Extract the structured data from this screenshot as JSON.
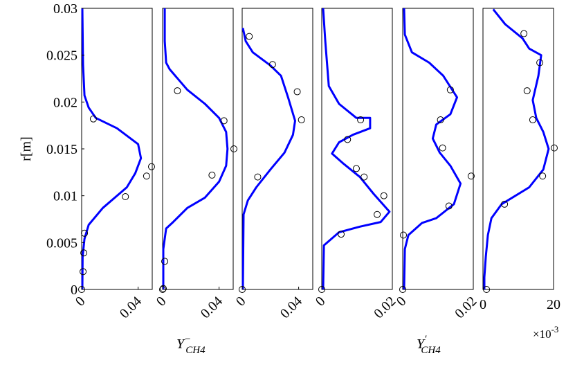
{
  "chart_data": [
    {
      "type": "line",
      "ylabel": "r[m]",
      "xlim": [
        0,
        0.05
      ],
      "xticks": [
        0,
        0.04
      ],
      "ylim": [
        0,
        0.03
      ],
      "yticks": [
        0,
        0.005,
        0.01,
        0.015,
        0.02,
        0.025,
        0.03
      ],
      "series": [
        {
          "style": "line",
          "color": "#0000ff",
          "x": [
            0.0005,
            0.0007,
            0.002,
            0.005,
            0.015,
            0.032,
            0.038,
            0.042,
            0.04,
            0.025,
            0.01,
            0.005,
            0.002,
            0.001,
            0.0005
          ],
          "y": [
            0,
            0.0035,
            0.0054,
            0.0069,
            0.0087,
            0.0109,
            0.0124,
            0.014,
            0.0155,
            0.0172,
            0.0183,
            0.0194,
            0.0207,
            0.024,
            0.03
          ]
        },
        {
          "style": "markers",
          "color": "#000000",
          "x": [
            0,
            0.001,
            0.0015,
            0.002,
            0.0083,
            0.031,
            0.046,
            0.0495
          ],
          "y": [
            0,
            0.0019,
            0.0039,
            0.006,
            0.0182,
            0.0099,
            0.0121,
            0.0131
          ]
        }
      ]
    },
    {
      "type": "line",
      "xlabel": {
        "base": "Y",
        "superscript": "−",
        "subscript": "CH4"
      },
      "xlim": [
        0,
        0.05
      ],
      "xticks": [
        0,
        0.04
      ],
      "ylim": [
        0,
        0.03
      ],
      "series": [
        {
          "style": "line",
          "color": "#0000ff",
          "x": [
            0.0005,
            0.0005,
            0.0025,
            0.0075,
            0.0175,
            0.03,
            0.04,
            0.045,
            0.046,
            0.045,
            0.04,
            0.03,
            0.0175,
            0.005,
            0.0025,
            0.0015,
            0.0015
          ],
          "y": [
            0,
            0.0043,
            0.0065,
            0.0072,
            0.0087,
            0.0098,
            0.0115,
            0.0132,
            0.015,
            0.0168,
            0.0183,
            0.0198,
            0.0213,
            0.0235,
            0.0242,
            0.0265,
            0.03
          ]
        },
        {
          "style": "markers",
          "color": "#000000",
          "x": [
            0,
            0.0005,
            0.0015,
            0.0105,
            0.0435,
            0.0505,
            0.035
          ],
          "y": [
            0,
            0.0001,
            0.003,
            0.0212,
            0.018,
            0.015,
            0.0122
          ]
        }
      ]
    },
    {
      "type": "line",
      "xlim": [
        0,
        0.05
      ],
      "xticks": [
        0,
        0.04
      ],
      "ylim": [
        0,
        0.03
      ],
      "series": [
        {
          "style": "line",
          "color": "#0000ff",
          "x": [
            0.0005,
            0.001,
            0.004,
            0.01,
            0.02,
            0.03,
            0.036,
            0.0375,
            0.0325,
            0.0275,
            0.02,
            0.0075,
            0.0025,
            0.0005
          ],
          "y": [
            0,
            0.008,
            0.0095,
            0.0109,
            0.0128,
            0.0146,
            0.0165,
            0.018,
            0.0205,
            0.0228,
            0.0239,
            0.0253,
            0.0265,
            0.0279
          ]
        },
        {
          "style": "markers",
          "color": "#000000",
          "x": [
            0,
            0.011,
            0.005,
            0.0215,
            0.039,
            0.042
          ],
          "y": [
            0,
            0.012,
            0.027,
            0.024,
            0.0211,
            0.0181
          ]
        }
      ]
    },
    {
      "type": "line",
      "xlim": [
        0,
        0.02
      ],
      "xticks": [
        0,
        0.02
      ],
      "ylim": [
        0,
        0.03
      ],
      "series": [
        {
          "style": "line",
          "color": "#0000ff",
          "x": [
            0.0004,
            0.0006,
            0.0049,
            0.0108,
            0.0167,
            0.0192,
            0.0147,
            0.0108,
            0.0059,
            0.0029,
            0.0049,
            0.0088,
            0.0137,
            0.0137,
            0.0098,
            0.0049,
            0.002,
            0.001,
            0.0004
          ],
          "y": [
            0,
            0.0047,
            0.0061,
            0.0067,
            0.0072,
            0.0083,
            0.0102,
            0.012,
            0.0135,
            0.0145,
            0.0157,
            0.0165,
            0.0172,
            0.0183,
            0.0183,
            0.0198,
            0.0217,
            0.0265,
            0.03
          ]
        },
        {
          "style": "markers",
          "color": "#000000",
          "x": [
            0,
            0.0055,
            0.0073,
            0.0098,
            0.012,
            0.011,
            0.0176,
            0.0157
          ],
          "y": [
            0,
            0.0059,
            0.016,
            0.0129,
            0.012,
            0.0181,
            0.01,
            0.008
          ]
        }
      ]
    },
    {
      "type": "line",
      "xlabel": {
        "base": "Y",
        "superscript": "′",
        "subscript": "CH4"
      },
      "xlim": [
        0,
        0.02
      ],
      "xticks": [
        0,
        0.02
      ],
      "ylim": [
        0,
        0.03
      ],
      "series": [
        {
          "style": "line",
          "color": "#0000ff",
          "x": [
            0.0004,
            0.0006,
            0.0016,
            0.0055,
            0.0095,
            0.0145,
            0.0164,
            0.0135,
            0.0105,
            0.0085,
            0.0095,
            0.0135,
            0.0154,
            0.0115,
            0.0075,
            0.0026,
            0.0006,
            0.0004
          ],
          "y": [
            0,
            0.0043,
            0.0058,
            0.0071,
            0.0076,
            0.0091,
            0.0113,
            0.0132,
            0.0146,
            0.0161,
            0.0176,
            0.0187,
            0.0205,
            0.0228,
            0.0242,
            0.0253,
            0.0272,
            0.03
          ]
        },
        {
          "style": "markers",
          "color": "#000000",
          "x": [
            0,
            0.0002,
            0.0135,
            0.0107,
            0.0113,
            0.0194,
            0.0131
          ],
          "y": [
            0,
            0.0058,
            0.0213,
            0.0181,
            0.0151,
            0.0121,
            0.0089
          ]
        }
      ]
    },
    {
      "type": "line",
      "x_multiplier": {
        "base": "×10",
        "exponent": "-3"
      },
      "xlim": [
        0,
        20
      ],
      "xticks": [
        0,
        20
      ],
      "ylim": [
        0,
        0.03
      ],
      "series": [
        {
          "style": "line",
          "color": "#0000ff",
          "x": [
            0.4,
            0.4,
            0.8,
            1.4,
            2.4,
            5.3,
            13.1,
            17.1,
            18.6,
            17.1,
            15.1,
            14.1,
            15.7,
            16.5,
            13.1,
            11.2,
            6.3,
            2.9
          ],
          "y": [
            0,
            0.0013,
            0.0035,
            0.0058,
            0.0076,
            0.0091,
            0.0109,
            0.0128,
            0.015,
            0.0168,
            0.0183,
            0.0202,
            0.0228,
            0.025,
            0.0257,
            0.0268,
            0.0283,
            0.0299
          ]
        },
        {
          "style": "markers",
          "color": "#000000",
          "x": [
            1,
            6.1,
            11.6,
            16.1,
            12.5,
            14.1,
            20.2,
            16.9
          ],
          "y": [
            0,
            0.0091,
            0.0273,
            0.0242,
            0.0212,
            0.0181,
            0.0151,
            0.0121
          ]
        }
      ]
    }
  ]
}
